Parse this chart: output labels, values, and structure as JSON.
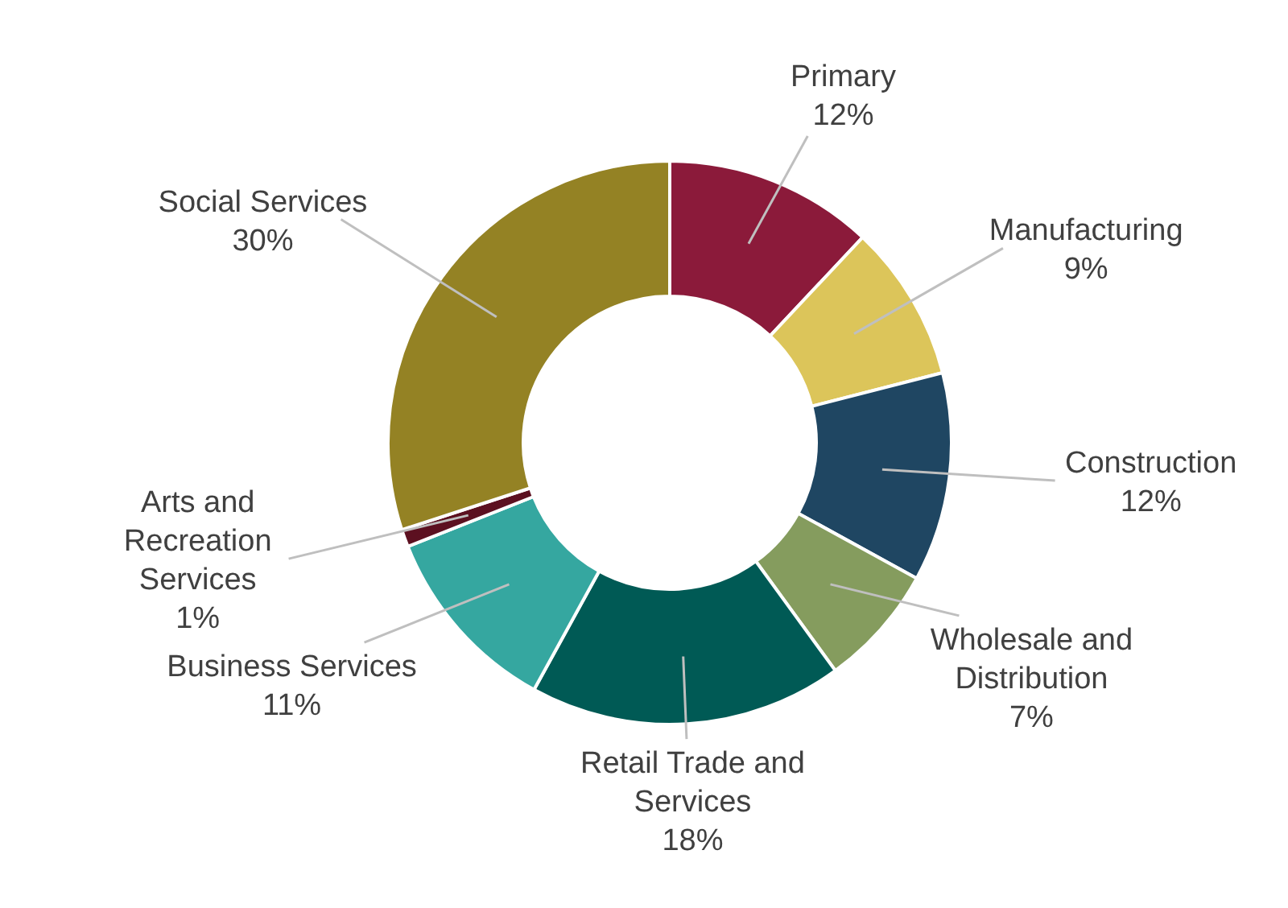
{
  "chart_data": {
    "type": "donut",
    "categories": [
      "Primary",
      "Manufacturing",
      "Construction",
      "Wholesale and Distribution",
      "Retail Trade and Services",
      "Business Services",
      "Arts and Recreation Services",
      "Social Services"
    ],
    "values": [
      12,
      9,
      12,
      7,
      18,
      11,
      1,
      30
    ],
    "value_labels": [
      "12%",
      "9%",
      "12%",
      "7%",
      "18%",
      "11%",
      "1%",
      "30%"
    ],
    "colors": [
      "#8b1a3a",
      "#dcc55a",
      "#1f4662",
      "#859c5e",
      "#005a55",
      "#35a7a0",
      "#5c1020",
      "#948224"
    ]
  }
}
